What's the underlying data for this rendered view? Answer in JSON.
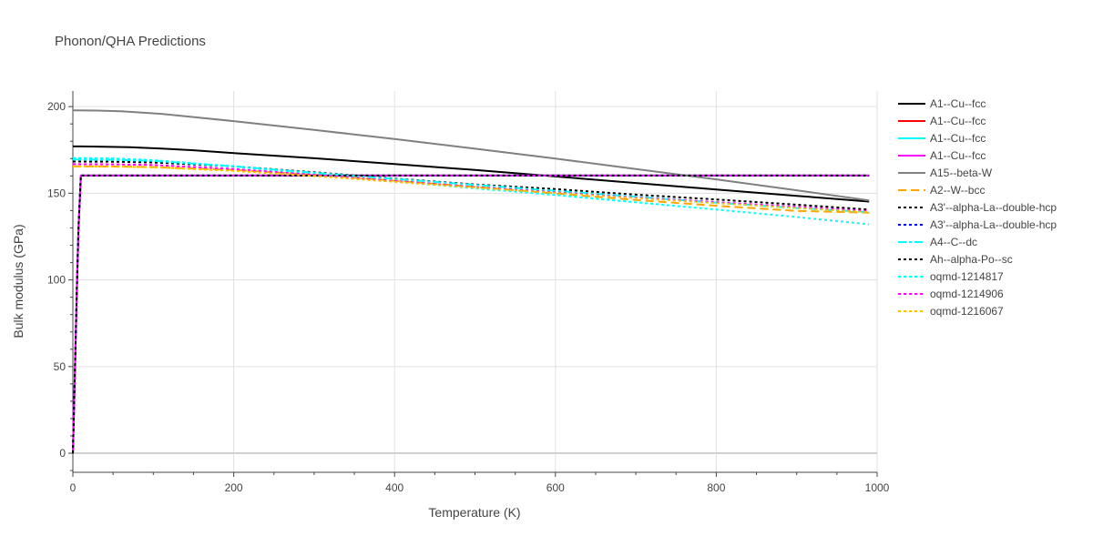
{
  "chart_data": {
    "type": "line",
    "title": "Phonon/QHA Predictions",
    "xlabel": "Temperature (K)",
    "ylabel": "Bulk modulus (GPa)",
    "xlim": [
      0,
      1000
    ],
    "ylim": [
      -11,
      209
    ],
    "xticks": [
      0,
      200,
      400,
      600,
      800,
      1000
    ],
    "yticks": [
      0,
      50,
      100,
      150,
      200
    ],
    "grid": true,
    "legend_position": "right",
    "series": [
      {
        "name": "A1--Cu--fcc",
        "color": "#000000",
        "dash": "solid",
        "x": [
          0,
          10,
          30,
          70,
          110,
          150,
          200,
          300,
          400,
          500,
          600,
          700,
          800,
          900,
          990
        ],
        "y": [
          177,
          177,
          176.9,
          176.6,
          175.8,
          174.8,
          173.2,
          170.2,
          166.9,
          163.4,
          159.7,
          155.9,
          152.2,
          148.5,
          145.2
        ]
      },
      {
        "name": "A1--Cu--fcc",
        "color": "#ff0000",
        "dash": "solid",
        "x": [
          0,
          1,
          3,
          5,
          7,
          10,
          200,
          400,
          600,
          800,
          990
        ],
        "y": [
          0,
          18,
          55,
          95,
          130,
          160.2,
          160.2,
          160.2,
          160.2,
          160.2,
          160.2
        ]
      },
      {
        "name": "A1--Cu--fcc",
        "color": "#00ffff",
        "dash": "solid",
        "x": [
          0,
          1,
          3,
          5,
          7,
          10,
          200,
          400,
          600,
          800,
          990
        ],
        "y": [
          0,
          18,
          55,
          95,
          130,
          160.2,
          160.2,
          160.2,
          160.2,
          160.2,
          160.2
        ]
      },
      {
        "name": "A1--Cu--fcc",
        "color": "#ff00ff",
        "dash": "solid",
        "x": [
          0,
          1,
          3,
          5,
          7,
          10,
          200,
          400,
          600,
          800,
          990
        ],
        "y": [
          0,
          18,
          55,
          95,
          130,
          160.2,
          160.2,
          160.2,
          160.2,
          160.2,
          160.2
        ]
      },
      {
        "name": "A15--beta-W",
        "color": "#808080",
        "dash": "solid",
        "x": [
          0,
          30,
          60,
          110,
          200,
          300,
          400,
          500,
          600,
          700,
          800,
          900,
          990
        ],
        "y": [
          197.8,
          197.7,
          197.3,
          195.8,
          191.6,
          186.6,
          181.3,
          175.7,
          170,
          164,
          158,
          151.7,
          145.9
        ]
      },
      {
        "name": "A2--W--bcc",
        "color": "#ffa500",
        "dash": "dash",
        "x": [
          0,
          50,
          100,
          200,
          300,
          400,
          500,
          600,
          700,
          800,
          900,
          990
        ],
        "y": [
          165.5,
          165.4,
          165.1,
          163.5,
          160.7,
          157.3,
          153.6,
          149.9,
          146.1,
          142.8,
          139.8,
          138.8
        ]
      },
      {
        "name": "A3'--alpha-La--double-hcp",
        "color": "#000000",
        "dash": "dot",
        "x": [
          0,
          50,
          100,
          200,
          300,
          400,
          500,
          600,
          700,
          800,
          900,
          990
        ],
        "y": [
          168.3,
          168.2,
          167.8,
          165.5,
          162.1,
          158.5,
          155.1,
          152.4,
          149.2,
          146.4,
          143.4,
          140.6
        ]
      },
      {
        "name": "A3'--alpha-La--double-hcp",
        "color": "#0000ff",
        "dash": "dot",
        "x": [
          0,
          1,
          3,
          5,
          7,
          10,
          200,
          400,
          600,
          800,
          990
        ],
        "y": [
          0,
          18,
          55,
          95,
          130,
          160.2,
          160.2,
          160.2,
          160.2,
          160.2,
          160.2
        ]
      },
      {
        "name": "A4--C--dc",
        "color": "#00ffff",
        "dash": "dashdot",
        "x": [
          0,
          50,
          100,
          200,
          300,
          400,
          500,
          600,
          700,
          800,
          900,
          990
        ],
        "y": [
          169.5,
          169.3,
          168.7,
          165.5,
          161.8,
          158.3,
          154.8,
          151.4,
          148,
          144.6,
          141.5,
          139.1
        ]
      },
      {
        "name": "Ah--alpha-Po--sc",
        "color": "#000000",
        "dash": "dot",
        "x": [
          0,
          1,
          3,
          5,
          7,
          10,
          200,
          400,
          600,
          800,
          990
        ],
        "y": [
          0,
          18,
          55,
          95,
          130,
          160.2,
          160.2,
          160.2,
          160.2,
          160.2,
          160.2
        ]
      },
      {
        "name": "oqmd-1214817",
        "color": "#00ffff",
        "dash": "dot",
        "x": [
          0,
          50,
          100,
          200,
          300,
          400,
          500,
          600,
          700,
          800,
          900,
          990
        ],
        "y": [
          170.3,
          170.1,
          169.1,
          165.5,
          160.9,
          156.8,
          152.8,
          149,
          144.8,
          140.6,
          136.3,
          132.1
        ]
      },
      {
        "name": "oqmd-1214906",
        "color": "#ff00ff",
        "dash": "dot",
        "x": [
          0,
          50,
          100,
          200,
          300,
          400,
          500,
          600,
          700,
          800,
          900,
          990
        ],
        "y": [
          166.8,
          166.7,
          166.3,
          164,
          160.6,
          157.1,
          153.6,
          150.6,
          147.5,
          144.9,
          142.2,
          139.7
        ]
      },
      {
        "name": "oqmd-1216067",
        "color": "#ffc000",
        "dash": "dot",
        "x": [
          0,
          50,
          100,
          200,
          300,
          400,
          500,
          600,
          700,
          800,
          900,
          990
        ],
        "y": [
          165.5,
          165.4,
          165,
          162.9,
          159.9,
          156.6,
          153.2,
          150.2,
          147.2,
          144.3,
          141.5,
          139.1
        ]
      }
    ]
  }
}
